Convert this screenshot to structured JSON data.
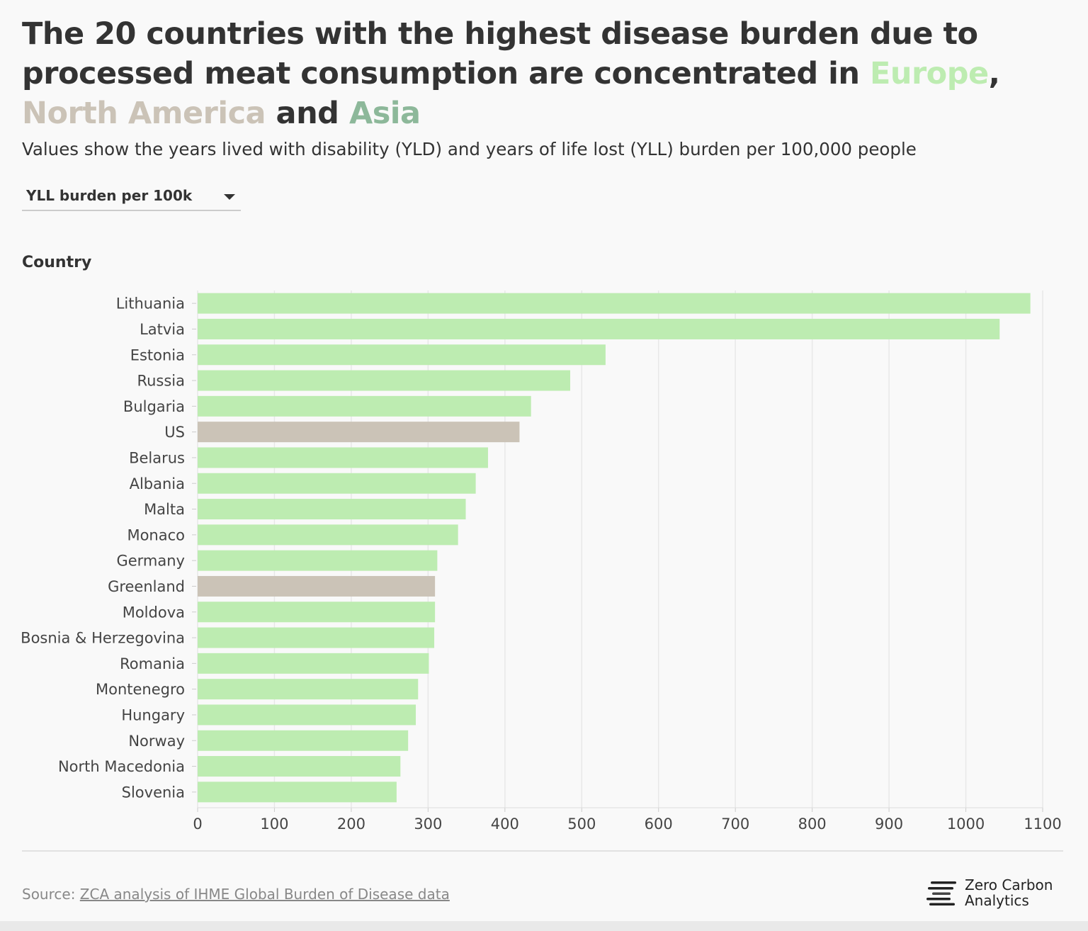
{
  "header": {
    "title_part1": "The 20 countries with the highest disease burden due to processed meat consumption are concentrated in ",
    "title_region1": "Europe",
    "title_comma": ", ",
    "title_region2": "North America",
    "title_and": " and ",
    "title_region3": "Asia",
    "subtitle": "Values show the years lived with disability (YLD) and years of life lost (YLL) burden per 100,000 people"
  },
  "controls": {
    "metric_dropdown": {
      "selected": "YLL burden per 100k"
    }
  },
  "colors": {
    "europe": "#bdecb1",
    "north_america": "#cbc3b7",
    "asia": "#8db89a",
    "text": "#333333",
    "grid": "#e8e8e8"
  },
  "chart_data": {
    "type": "bar",
    "orientation": "horizontal",
    "ylabel": "Country",
    "xlabel": "",
    "xlim": [
      0,
      1100
    ],
    "xticks": [
      0,
      100,
      200,
      300,
      400,
      500,
      600,
      700,
      800,
      900,
      1000,
      1100
    ],
    "grid": true,
    "categories": [
      "Lithuania",
      "Latvia",
      "Estonia",
      "Russia",
      "Bulgaria",
      "US",
      "Belarus",
      "Albania",
      "Malta",
      "Monaco",
      "Germany",
      "Greenland",
      "Moldova",
      "Bosnia & Herzegovina",
      "Romania",
      "Montenegro",
      "Hungary",
      "Norway",
      "North Macedonia",
      "Slovenia"
    ],
    "values": [
      1084,
      1044,
      531,
      485,
      434,
      419,
      378,
      362,
      349,
      339,
      312,
      309,
      309,
      308,
      301,
      287,
      284,
      274,
      264,
      259
    ],
    "regions": [
      "Europe",
      "Europe",
      "Europe",
      "Europe",
      "Europe",
      "North America",
      "Europe",
      "Europe",
      "Europe",
      "Europe",
      "Europe",
      "North America",
      "Europe",
      "Europe",
      "Europe",
      "Europe",
      "Europe",
      "Europe",
      "Europe",
      "Europe"
    ]
  },
  "footer": {
    "source_prefix": "Source: ",
    "source_link": "ZCA analysis of IHME Global Burden of Disease data",
    "logo_line1": "Zero Carbon",
    "logo_line2": "Analytics"
  }
}
